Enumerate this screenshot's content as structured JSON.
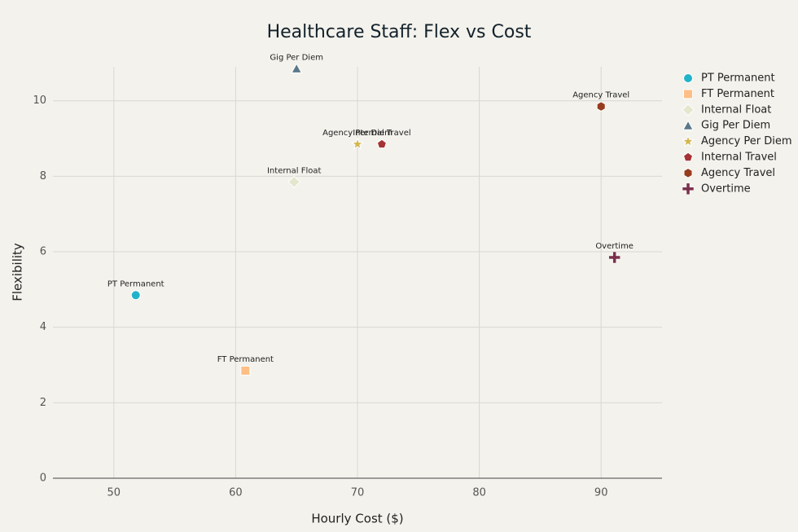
{
  "chart_data": {
    "type": "scatter",
    "title": "Healthcare Staff: Flex vs Cost",
    "x_label": "Hourly Cost ($)",
    "y_label": "Flexibility",
    "xlim": [
      45,
      95
    ],
    "xticks": [
      50,
      60,
      70,
      80,
      90
    ],
    "ylim": [
      0,
      10.9
    ],
    "yticks": [
      0,
      2,
      4,
      6,
      8,
      10
    ],
    "grid": true,
    "legend": "right",
    "series": [
      {
        "name": "PT Permanent",
        "color": "#22b3c8",
        "marker": "circle",
        "x": [
          51.8
        ],
        "values": [
          4.85
        ]
      },
      {
        "name": "FT Permanent",
        "color": "#fdbf85",
        "marker": "square",
        "x": [
          60.8
        ],
        "values": [
          2.85
        ]
      },
      {
        "name": "Internal Float",
        "color": "#e4e7cd",
        "marker": "diamond",
        "x": [
          64.8
        ],
        "values": [
          7.85
        ]
      },
      {
        "name": "Gig Per Diem",
        "color": "#5a7888",
        "marker": "triangle",
        "x": [
          65
        ],
        "values": [
          10.85
        ]
      },
      {
        "name": "Agency Per Diem",
        "color": "#d3b64e",
        "marker": "star",
        "x": [
          70
        ],
        "values": [
          8.85
        ]
      },
      {
        "name": "Internal Travel",
        "color": "#a53234",
        "marker": "pentagon",
        "x": [
          72
        ],
        "values": [
          8.85
        ]
      },
      {
        "name": "Agency Travel",
        "color": "#983c1e",
        "marker": "hexagon",
        "x": [
          90
        ],
        "values": [
          9.85
        ]
      },
      {
        "name": "Overtime",
        "color": "#7b2f4c",
        "marker": "cross",
        "x": [
          91.1
        ],
        "values": [
          5.85
        ]
      }
    ]
  }
}
